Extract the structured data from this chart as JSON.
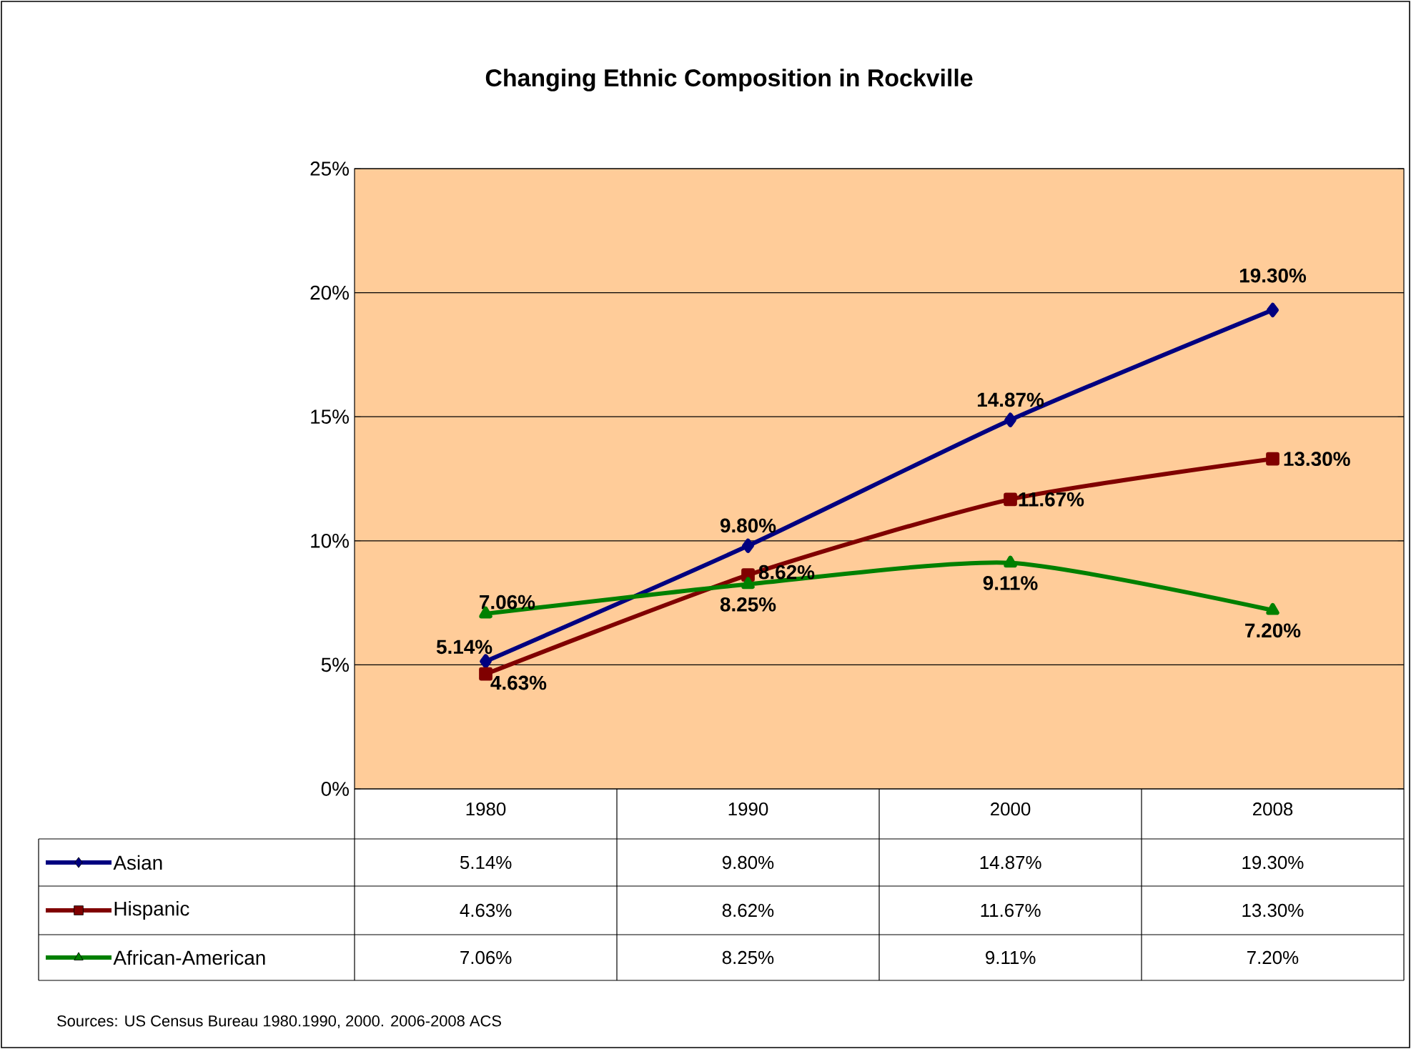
{
  "chart_data": {
    "type": "line",
    "title": "Changing Ethnic Composition in Rockville",
    "categories": [
      "1980",
      "1990",
      "2000",
      "2008"
    ],
    "series": [
      {
        "name": "Asian",
        "color": "#000080",
        "marker": "diamond",
        "values": [
          5.14,
          9.8,
          14.87,
          19.3
        ],
        "value_labels": [
          "5.14%",
          "9.80%",
          "14.87%",
          "19.30%"
        ]
      },
      {
        "name": "Hispanic",
        "color": "#800000",
        "marker": "square",
        "values": [
          4.63,
          8.62,
          11.67,
          13.3
        ],
        "value_labels": [
          "4.63%",
          "8.62%",
          "11.67%",
          "13.30%"
        ]
      },
      {
        "name": "African-American",
        "color": "#008000",
        "marker": "triangle",
        "values": [
          7.06,
          8.25,
          9.11,
          7.2
        ],
        "value_labels": [
          "7.06%",
          "8.25%",
          "9.11%",
          "7.20%"
        ]
      }
    ],
    "ylim": [
      0,
      25
    ],
    "yticks": [
      {
        "value": 0,
        "label": "0%"
      },
      {
        "value": 5,
        "label": "5%"
      },
      {
        "value": 10,
        "label": "10%"
      },
      {
        "value": 15,
        "label": "15%"
      },
      {
        "value": 20,
        "label": "20%"
      },
      {
        "value": 25,
        "label": "25%"
      }
    ],
    "grid": "y",
    "legend": "bottom left",
    "annotations": [
      "Sources: US Census Bureau 1980.1990, 2000.  2006-2008 ACS"
    ]
  }
}
